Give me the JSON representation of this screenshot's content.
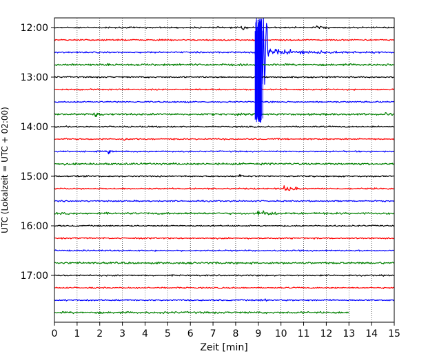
{
  "chart_data": {
    "type": "line",
    "title": "",
    "xlabel": "Zeit  [min]",
    "ylabel": "UTC (Lokalzeit = UTC + 02:00)",
    "xlim": [
      0,
      15
    ],
    "x_ticks": [
      "0",
      "1",
      "2",
      "3",
      "4",
      "5",
      "6",
      "7",
      "8",
      "9",
      "10",
      "11",
      "12",
      "13",
      "14",
      "15"
    ],
    "y_ticks": [
      "12:00",
      "13:00",
      "14:00",
      "15:00",
      "16:00",
      "17:00"
    ],
    "grid": true,
    "line_minutes_per_row": 15,
    "row_colors": [
      "#000000",
      "#ff0000",
      "#0000ff",
      "#008000"
    ],
    "rows": [
      {
        "start": "12:00",
        "end_min": 15
      },
      {
        "start": "12:15",
        "end_min": 15
      },
      {
        "start": "12:30",
        "end_min": 15
      },
      {
        "start": "12:45",
        "end_min": 15
      },
      {
        "start": "13:00",
        "end_min": 15
      },
      {
        "start": "13:15",
        "end_min": 15
      },
      {
        "start": "13:30",
        "end_min": 15
      },
      {
        "start": "13:45",
        "end_min": 15
      },
      {
        "start": "14:00",
        "end_min": 15
      },
      {
        "start": "14:15",
        "end_min": 15
      },
      {
        "start": "14:30",
        "end_min": 15
      },
      {
        "start": "14:45",
        "end_min": 15
      },
      {
        "start": "15:00",
        "end_min": 15
      },
      {
        "start": "15:15",
        "end_min": 15
      },
      {
        "start": "15:30",
        "end_min": 15
      },
      {
        "start": "15:45",
        "end_min": 15
      },
      {
        "start": "16:00",
        "end_min": 15
      },
      {
        "start": "16:15",
        "end_min": 15
      },
      {
        "start": "16:30",
        "end_min": 15
      },
      {
        "start": "16:45",
        "end_min": 15
      },
      {
        "start": "17:00",
        "end_min": 15
      },
      {
        "start": "17:15",
        "end_min": 15
      },
      {
        "start": "17:30",
        "end_min": 15
      },
      {
        "start": "17:45",
        "end_min": 13
      }
    ],
    "events": [
      {
        "row": 0,
        "t": 8.3,
        "amp": 0.45,
        "dur": 0.25
      },
      {
        "row": 0,
        "t": 11.6,
        "amp": 0.35,
        "dur": 0.6
      },
      {
        "row": 2,
        "t": 8.9,
        "amp": 1.0,
        "dur": 5.5,
        "big": true
      },
      {
        "row": 7,
        "t": 1.8,
        "amp": 0.45,
        "dur": 0.35
      },
      {
        "row": 7,
        "t": 14.6,
        "amp": 0.45,
        "dur": 0.2
      },
      {
        "row": 9,
        "t": 3.1,
        "amp": 0.35,
        "dur": 0.3
      },
      {
        "row": 10,
        "t": 2.4,
        "amp": 0.4,
        "dur": 0.2
      },
      {
        "row": 12,
        "t": 8.2,
        "amp": 0.3,
        "dur": 0.3
      },
      {
        "row": 13,
        "t": 10.1,
        "amp": 0.6,
        "dur": 0.8
      },
      {
        "row": 15,
        "t": 9.0,
        "amp": 0.5,
        "dur": 0.9
      },
      {
        "row": 22,
        "t": 9.1,
        "amp": 0.3,
        "dur": 0.3
      }
    ]
  }
}
